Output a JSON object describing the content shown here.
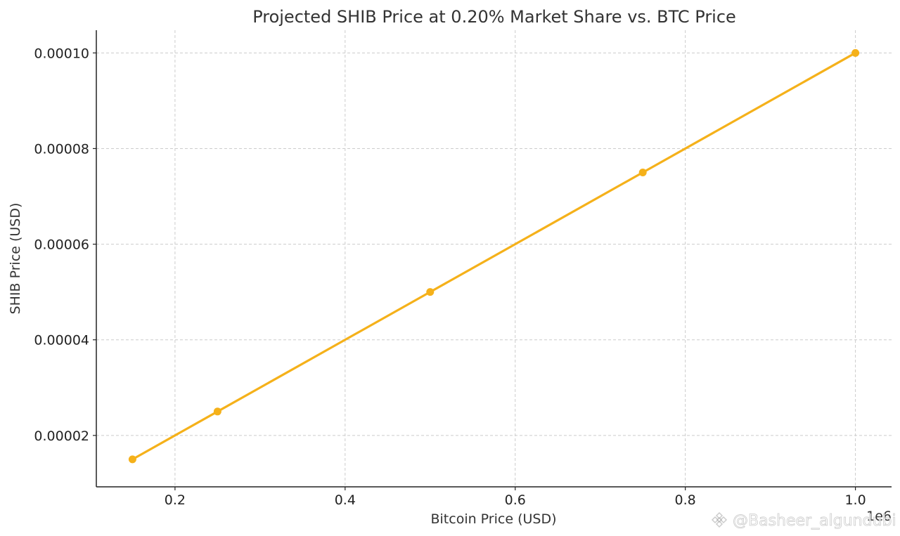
{
  "chart_data": {
    "type": "line",
    "title": "Projected SHIB Price at 0.20% Market Share vs. BTC Price",
    "xlabel": "Bitcoin Price (USD)",
    "ylabel": "SHIB Price (USD)",
    "x_offset_label": "1e6",
    "x": [
      0.15,
      0.25,
      0.5,
      0.75,
      1.0
    ],
    "series": [
      {
        "values": [
          1.5e-05,
          2.5e-05,
          5e-05,
          7.5e-05,
          0.0001
        ],
        "color": "#F5B11A",
        "marker": "circle"
      }
    ],
    "xlim": [
      0.1075,
      1.0425
    ],
    "ylim": [
      9.25e-06,
      0.00010475
    ],
    "xticks": [
      {
        "value": 0.2,
        "label": "0.2"
      },
      {
        "value": 0.4,
        "label": "0.4"
      },
      {
        "value": 0.6,
        "label": "0.6"
      },
      {
        "value": 0.8,
        "label": "0.8"
      },
      {
        "value": 1.0,
        "label": "1.0"
      }
    ],
    "yticks": [
      {
        "value": 2e-05,
        "label": "0.00002"
      },
      {
        "value": 4e-05,
        "label": "0.00004"
      },
      {
        "value": 6e-05,
        "label": "0.00006"
      },
      {
        "value": 8e-05,
        "label": "0.00008"
      },
      {
        "value": 0.0001,
        "label": "0.00010"
      }
    ],
    "grid": true,
    "grid_style": "dashed"
  },
  "watermark": {
    "text": "@Basheer_algundubi",
    "icon": "binance-logo-icon"
  }
}
